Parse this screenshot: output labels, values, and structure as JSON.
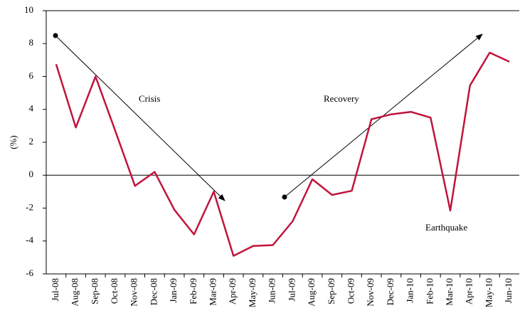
{
  "chart_data": {
    "type": "line",
    "y_label": "(%)",
    "categories": [
      "Jul-08",
      "Aug-08",
      "Sep-08",
      "Oct-08",
      "Nov-08",
      "Dec-08",
      "Jan-09",
      "Feb-09",
      "Mar-09",
      "Apr-09",
      "May-09",
      "Jun-09",
      "Jul-09",
      "Aug-09",
      "Sep-09",
      "Oct-09",
      "Nov-09",
      "Dec-09",
      "Jan-10",
      "Feb-10",
      "Mar-10",
      "Apr-10",
      "May-10",
      "Jun-10"
    ],
    "values": [
      6.75,
      2.9,
      6.0,
      2.7,
      -0.65,
      0.2,
      -2.1,
      -3.6,
      -1.0,
      -4.9,
      -4.3,
      -4.25,
      -2.8,
      -0.25,
      -1.2,
      -0.95,
      3.4,
      3.7,
      3.85,
      3.5,
      -2.15,
      5.45,
      7.45,
      6.9
    ],
    "color": "#c0143c",
    "ylim": [
      -6,
      10
    ],
    "yticks": [
      -6,
      -4,
      -2,
      0,
      2,
      4,
      6,
      8,
      10
    ],
    "annotations": [
      "Crisis",
      "Recovery",
      "Earthquake"
    ]
  }
}
